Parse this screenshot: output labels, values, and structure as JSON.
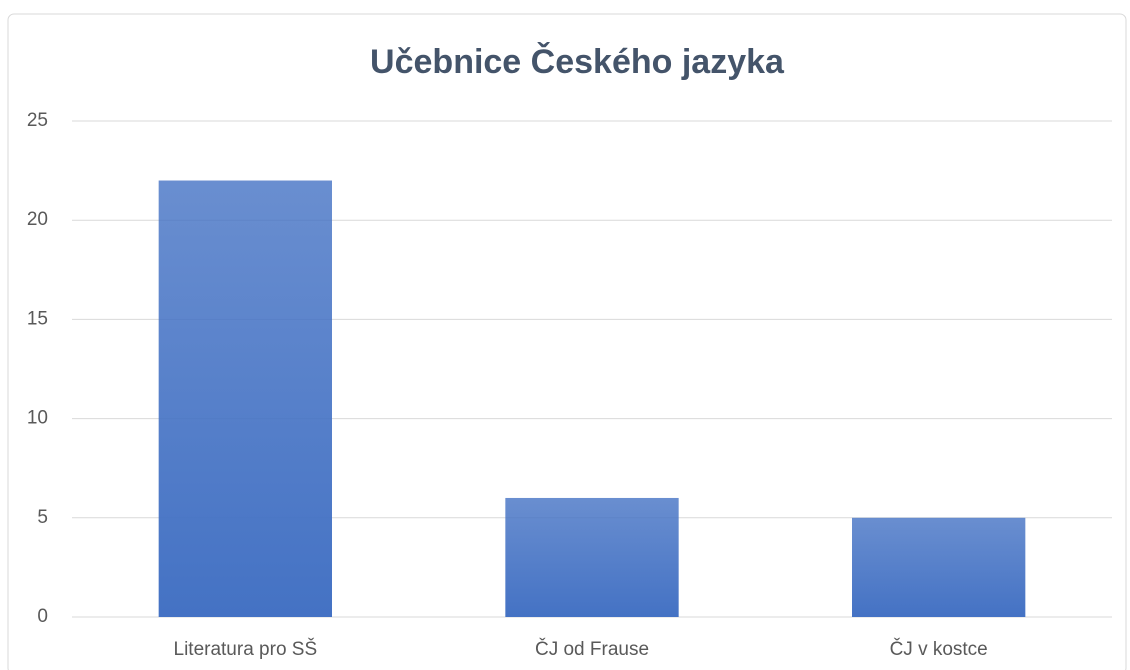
{
  "chart_data": {
    "type": "bar",
    "title": "Učebnice Českého jazyka",
    "categories": [
      "Literatura pro SŠ",
      "ČJ od Frause",
      "ČJ v kostce"
    ],
    "values": [
      22,
      6,
      5
    ],
    "color": "#4472c4",
    "ylim": [
      0,
      25
    ],
    "yticks": [
      0,
      5,
      10,
      15,
      20,
      25
    ],
    "grid": true
  }
}
